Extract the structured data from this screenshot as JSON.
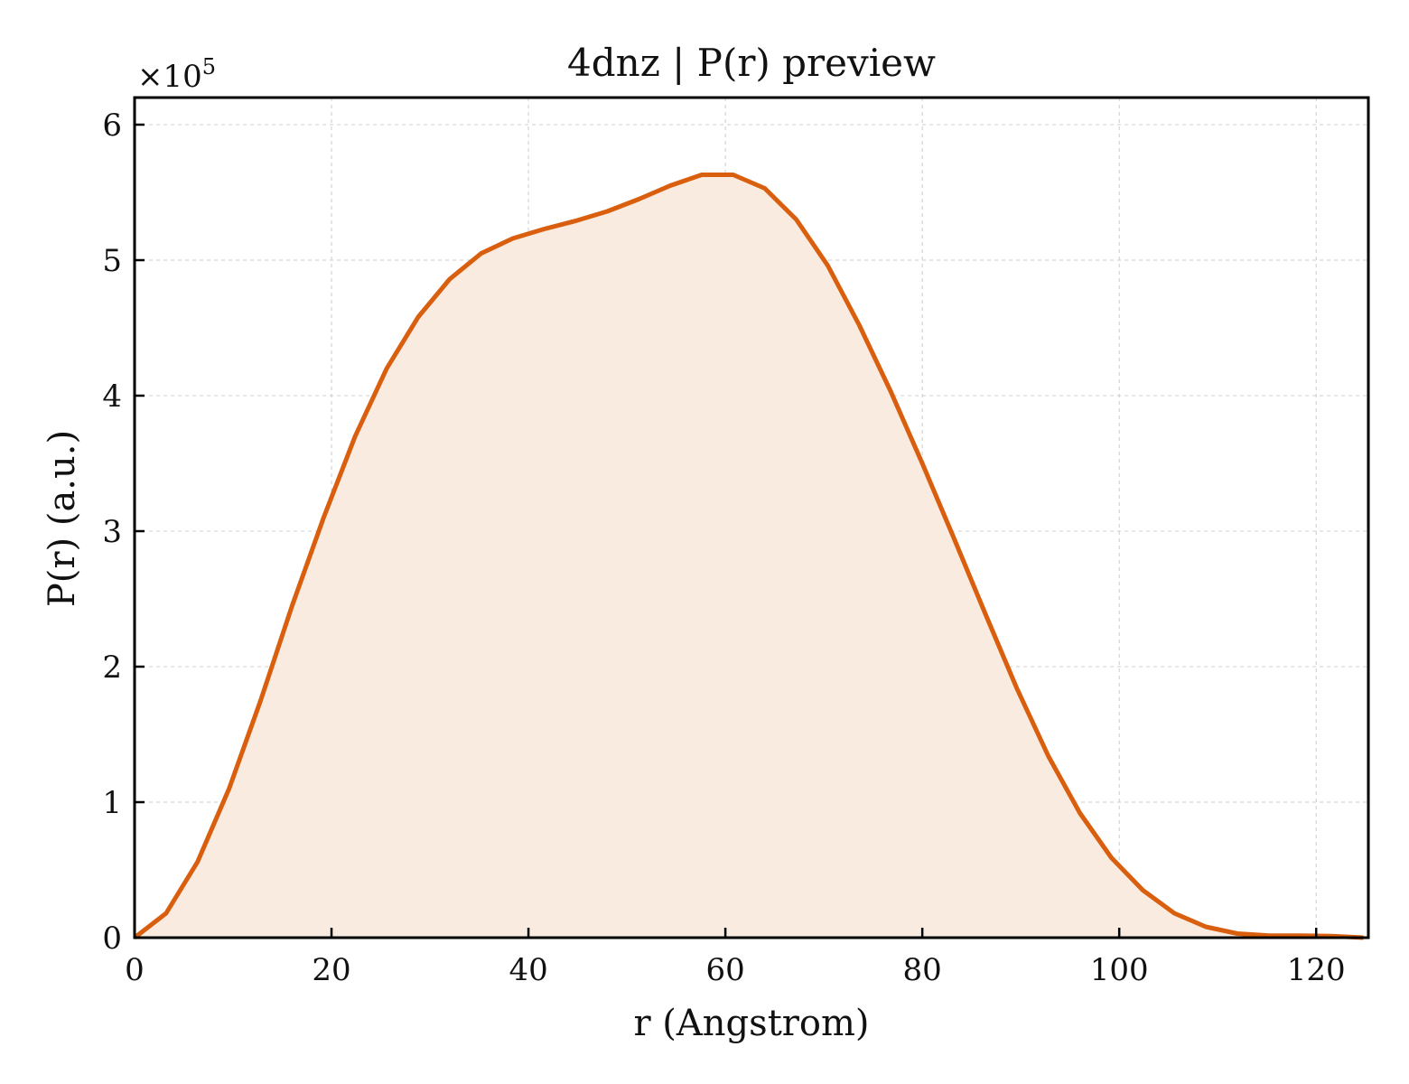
{
  "chart_data": {
    "type": "area",
    "title": "4dnz | P(r) preview",
    "xlabel": "r (Angstrom)",
    "ylabel": "P(r) (a.u.)",
    "y_multiplier": {
      "base": "×10",
      "exponent": "5"
    },
    "xlim": [
      0,
      125.3
    ],
    "ylim": [
      0,
      6.2
    ],
    "xticks": [
      0,
      20,
      40,
      60,
      80,
      100,
      120
    ],
    "xtick_labels": [
      "0",
      "20",
      "40",
      "60",
      "80",
      "100",
      "120"
    ],
    "yticks": [
      0,
      1,
      2,
      3,
      4,
      5,
      6
    ],
    "ytick_labels": [
      "0",
      "1",
      "2",
      "3",
      "4",
      "5",
      "6"
    ],
    "grid": true,
    "colors": {
      "line": "#d95f0e",
      "fill": "#f9ebe0",
      "grid": "#cccccc",
      "axis": "#000000"
    },
    "series": [
      {
        "x": [
          0,
          3.2,
          6.4,
          9.6,
          12.8,
          16.0,
          19.2,
          22.4,
          25.6,
          28.8,
          32.0,
          35.2,
          38.4,
          41.6,
          44.8,
          48.0,
          51.2,
          54.4,
          57.6,
          60.8,
          64.0,
          67.2,
          70.4,
          73.6,
          76.8,
          80.0,
          83.2,
          86.4,
          89.6,
          92.8,
          96.0,
          99.2,
          102.4,
          105.6,
          108.8,
          112.0,
          115.2,
          118.4,
          121.6,
          124.8
        ],
        "y": [
          0,
          0.18,
          0.56,
          1.1,
          1.75,
          2.45,
          3.1,
          3.7,
          4.2,
          4.58,
          4.86,
          5.05,
          5.16,
          5.23,
          5.29,
          5.36,
          5.45,
          5.55,
          5.63,
          5.63,
          5.53,
          5.3,
          4.96,
          4.52,
          4.03,
          3.5,
          2.95,
          2.39,
          1.84,
          1.34,
          0.92,
          0.59,
          0.35,
          0.18,
          0.08,
          0.03,
          0.015,
          0.015,
          0.012,
          0.0
        ]
      }
    ]
  }
}
